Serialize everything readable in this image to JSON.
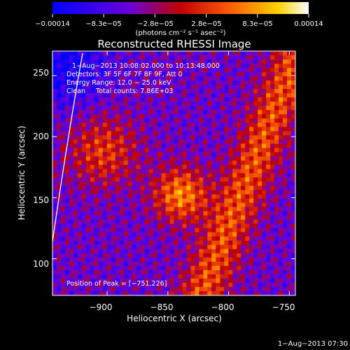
{
  "chart_data": {
    "type": "heatmap",
    "title": "Reconstructed RHESSI Image",
    "xlabel": "Heliocentric X (arcsec)",
    "ylabel": "Heliocentric Y (arcsec)",
    "xlim": [
      -945,
      -745
    ],
    "ylim": [
      70,
      270
    ],
    "x_ticks": [
      -900,
      -850,
      -800,
      -750
    ],
    "x_tick_labels": [
      "−900",
      "−850",
      "−800",
      "−750"
    ],
    "y_ticks": [
      100,
      150,
      200,
      250
    ],
    "y_tick_labels": [
      "100",
      "150",
      "200",
      "250"
    ],
    "colorbar": {
      "min": -0.00014,
      "max": 0.00014,
      "tick_labels": [
        "−0.00014",
        "−8.3e−05",
        "−2.8e−05",
        "2.8e−05",
        "8.3e−05",
        "0.00014"
      ],
      "units_label": "(photons cm⁻² s⁻¹ asec⁻²)",
      "colors": [
        "#0000ff",
        "#6a00d8",
        "#c00000",
        "#ff6000",
        "#ffd000",
        "#ffffff"
      ]
    },
    "annotations": [
      "1−Aug−2013 10:08:02.000  to  10:13:48.000",
      "Detectors: 3F 5F 6F 7F 8F 9F, Att 0",
      "Energy Range: 12.0 − 25.0 keV",
      "Clean     Total counts: 7.86E+03"
    ],
    "peak_label": "Position of Peak = [−751,226]",
    "peak_position": [
      -751,
      226
    ],
    "grid": false
  },
  "footer_timestamp": "1−Aug−2013 07:30"
}
